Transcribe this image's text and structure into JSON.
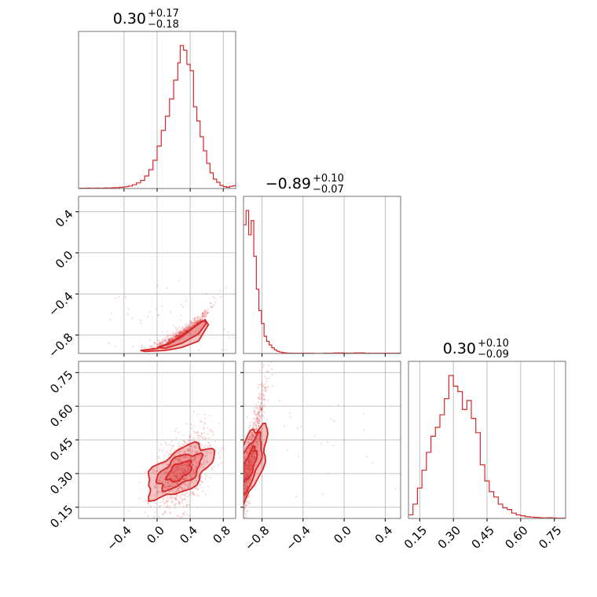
{
  "chart_data": {
    "type": "corner",
    "color": "#d62728",
    "grid": true,
    "panels": [
      {
        "id": "hist-1",
        "type": "histogram",
        "title": {
          "median": "0.30",
          "plus": "+0.17",
          "minus": "−0.18"
        },
        "xlim": [
          -0.95,
          0.95
        ],
        "bins": [
          [
            -0.95,
            0.002
          ],
          [
            -0.9,
            0.002
          ],
          [
            -0.85,
            0.003
          ],
          [
            -0.8,
            0.002
          ],
          [
            -0.75,
            0.003
          ],
          [
            -0.7,
            0.002
          ],
          [
            -0.65,
            0.004
          ],
          [
            -0.6,
            0.003
          ],
          [
            -0.55,
            0.005
          ],
          [
            -0.5,
            0.006
          ],
          [
            -0.45,
            0.008
          ],
          [
            -0.4,
            0.011
          ],
          [
            -0.35,
            0.016
          ],
          [
            -0.3,
            0.024
          ],
          [
            -0.25,
            0.036
          ],
          [
            -0.2,
            0.052
          ],
          [
            -0.15,
            0.08
          ],
          [
            -0.1,
            0.12
          ],
          [
            -0.05,
            0.18
          ],
          [
            0.0,
            0.27
          ],
          [
            0.05,
            0.37
          ],
          [
            0.1,
            0.46
          ],
          [
            0.15,
            0.57
          ],
          [
            0.2,
            0.69
          ],
          [
            0.25,
            0.8
          ],
          [
            0.28,
            0.91
          ],
          [
            0.32,
            0.88
          ],
          [
            0.36,
            0.79
          ],
          [
            0.4,
            0.75
          ],
          [
            0.44,
            0.52
          ],
          [
            0.48,
            0.43
          ],
          [
            0.52,
            0.33
          ],
          [
            0.56,
            0.24
          ],
          [
            0.6,
            0.16
          ],
          [
            0.64,
            0.1
          ],
          [
            0.68,
            0.06
          ],
          [
            0.72,
            0.04
          ],
          [
            0.76,
            0.02
          ],
          [
            0.8,
            0.012
          ],
          [
            0.84,
            0.008
          ],
          [
            0.88,
            0.014
          ],
          [
            0.92,
            0.018
          ]
        ]
      },
      {
        "id": "scatter-21",
        "type": "2d",
        "xlim": [
          -0.95,
          0.95
        ],
        "ylim": [
          -0.98,
          0.55
        ],
        "yticks": [
          "0.4",
          "0.0",
          "−0.4",
          "−0.8"
        ],
        "ytick_values": [
          0.4,
          0.0,
          -0.4,
          -0.8
        ]
      },
      {
        "id": "hist-2",
        "type": "histogram",
        "title": {
          "median": "−0.89",
          "plus": "+0.10",
          "minus": "−0.07"
        },
        "xlim": [
          -0.98,
          0.55
        ],
        "bins": [
          [
            -0.98,
            0.9
          ],
          [
            -0.955,
            1.0
          ],
          [
            -0.93,
            0.83
          ],
          [
            -0.905,
            0.93
          ],
          [
            -0.88,
            0.68
          ],
          [
            -0.855,
            0.45
          ],
          [
            -0.83,
            0.3
          ],
          [
            -0.805,
            0.21
          ],
          [
            -0.78,
            0.12
          ],
          [
            -0.755,
            0.085
          ],
          [
            -0.73,
            0.06
          ],
          [
            -0.705,
            0.04
          ],
          [
            -0.68,
            0.025
          ],
          [
            -0.655,
            0.015
          ],
          [
            -0.63,
            0.01
          ],
          [
            -0.605,
            0.006
          ],
          [
            -0.58,
            0.004
          ],
          [
            -0.555,
            0.003
          ],
          [
            -0.53,
            0.002
          ],
          [
            -0.5,
            0.002
          ],
          [
            -0.4,
            0.002
          ],
          [
            -0.3,
            0.001
          ],
          [
            -0.2,
            0.002
          ],
          [
            -0.1,
            0.004
          ],
          [
            0.0,
            0.003
          ],
          [
            0.1,
            0.004
          ],
          [
            0.2,
            0.002
          ],
          [
            0.3,
            0.002
          ],
          [
            0.4,
            0.002
          ]
        ]
      },
      {
        "id": "scatter-31",
        "type": "2d",
        "xlim": [
          -0.95,
          0.95
        ],
        "ylim": [
          0.1,
          0.8
        ],
        "yticks": [
          "0.75",
          "0.60",
          "0.45",
          "0.30",
          "0.15"
        ],
        "ytick_values": [
          0.75,
          0.6,
          0.45,
          0.3,
          0.15
        ],
        "xticks": [
          "−0.4",
          "0.0",
          "0.4",
          "0.8"
        ],
        "xtick_values": [
          -0.4,
          0.0,
          0.4,
          0.8
        ]
      },
      {
        "id": "scatter-32",
        "type": "2d",
        "xlim": [
          -0.98,
          0.55
        ],
        "ylim": [
          0.1,
          0.8
        ],
        "xticks": [
          "−0.8",
          "−0.4",
          "0.0",
          "0.4"
        ],
        "xtick_values": [
          -0.8,
          -0.4,
          0.0,
          0.4
        ]
      },
      {
        "id": "hist-3",
        "type": "histogram",
        "title": {
          "median": "0.30",
          "plus": "+0.10",
          "minus": "−0.09"
        },
        "xlim": [
          0.1,
          0.8
        ],
        "xticks": [
          "0.15",
          "0.30",
          "0.45",
          "0.60",
          "0.75"
        ],
        "xtick_values": [
          0.15,
          0.3,
          0.45,
          0.6,
          0.75
        ],
        "bins": [
          [
            0.1,
            0.02
          ],
          [
            0.12,
            0.08
          ],
          [
            0.14,
            0.17
          ],
          [
            0.16,
            0.27
          ],
          [
            0.18,
            0.37
          ],
          [
            0.2,
            0.46
          ],
          [
            0.22,
            0.51
          ],
          [
            0.24,
            0.58
          ],
          [
            0.26,
            0.67
          ],
          [
            0.28,
            0.8
          ],
          [
            0.3,
            0.74
          ],
          [
            0.32,
            0.71
          ],
          [
            0.34,
            0.61
          ],
          [
            0.36,
            0.66
          ],
          [
            0.38,
            0.56
          ],
          [
            0.4,
            0.48
          ],
          [
            0.42,
            0.3
          ],
          [
            0.44,
            0.21
          ],
          [
            0.46,
            0.15
          ],
          [
            0.48,
            0.12
          ],
          [
            0.5,
            0.08
          ],
          [
            0.52,
            0.06
          ],
          [
            0.54,
            0.05
          ],
          [
            0.56,
            0.03
          ],
          [
            0.58,
            0.02
          ],
          [
            0.6,
            0.015
          ],
          [
            0.62,
            0.01
          ],
          [
            0.64,
            0.008
          ],
          [
            0.66,
            0.006
          ],
          [
            0.68,
            0.004
          ],
          [
            0.7,
            0.003
          ],
          [
            0.72,
            0.004
          ],
          [
            0.74,
            0.003
          ],
          [
            0.76,
            0.002
          ],
          [
            0.78,
            0.002
          ]
        ]
      }
    ]
  }
}
